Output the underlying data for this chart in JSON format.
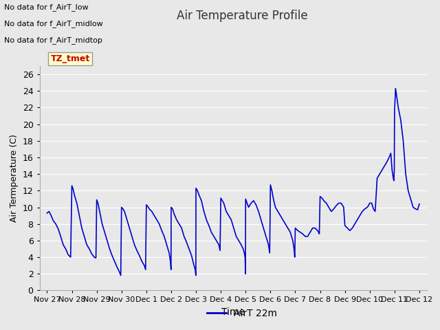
{
  "title": "Air Temperature Profile",
  "xlabel": "Time",
  "ylabel": "Air Termperature (C)",
  "background_color": "#e8e8e8",
  "line_color": "#0000cc",
  "line_width": 1.2,
  "ylim": [
    0,
    27
  ],
  "yticks": [
    0,
    2,
    4,
    6,
    8,
    10,
    12,
    14,
    16,
    18,
    20,
    22,
    24,
    26
  ],
  "legend_label": "AirT 22m",
  "no_data_texts": [
    "No data for f_AirT_low",
    "No data for f_AirT_midlow",
    "No data for f_AirT_midtop"
  ],
  "tz_tmet_label": "TZ_tmet",
  "x_tick_labels": [
    "Nov 27",
    "Nov 28",
    "Nov 29",
    "Nov 30",
    "Dec 1",
    "Dec 2",
    "Dec 3",
    "Dec 4",
    "Dec 5",
    "Dec 6",
    "Dec 7",
    "Dec 8",
    "Dec 9",
    "Dec 10",
    "Dec 11",
    "Dec 12"
  ],
  "waypoints_x": [
    0.0,
    0.08,
    0.15,
    0.25,
    0.35,
    0.45,
    0.55,
    0.65,
    0.75,
    0.85,
    0.95,
    1.0,
    1.05,
    1.1,
    1.2,
    1.3,
    1.4,
    1.5,
    1.6,
    1.7,
    1.8,
    1.9,
    1.97,
    2.0,
    2.05,
    2.12,
    2.22,
    2.32,
    2.42,
    2.52,
    2.62,
    2.72,
    2.82,
    2.92,
    2.97,
    3.0,
    3.06,
    3.12,
    3.22,
    3.32,
    3.42,
    3.52,
    3.62,
    3.72,
    3.82,
    3.92,
    3.97,
    4.0,
    4.06,
    4.12,
    4.22,
    4.32,
    4.42,
    4.52,
    4.62,
    4.72,
    4.82,
    4.92,
    4.97,
    4.995,
    5.0,
    5.06,
    5.12,
    5.22,
    5.32,
    5.42,
    5.52,
    5.62,
    5.72,
    5.82,
    5.92,
    5.97,
    5.995,
    6.0,
    6.06,
    6.12,
    6.22,
    6.32,
    6.42,
    6.52,
    6.62,
    6.72,
    6.82,
    6.92,
    6.97,
    7.0,
    7.06,
    7.12,
    7.22,
    7.32,
    7.42,
    7.52,
    7.62,
    7.72,
    7.82,
    7.9,
    7.95,
    7.98,
    7.995,
    8.0,
    8.06,
    8.12,
    8.22,
    8.32,
    8.42,
    8.52,
    8.62,
    8.72,
    8.82,
    8.92,
    8.97,
    9.0,
    9.06,
    9.12,
    9.2,
    9.3,
    9.4,
    9.5,
    9.6,
    9.7,
    9.8,
    9.9,
    9.95,
    9.98,
    10.0,
    10.1,
    10.2,
    10.3,
    10.4,
    10.5,
    10.6,
    10.7,
    10.8,
    10.9,
    10.97,
    11.0,
    11.08,
    11.15,
    11.25,
    11.35,
    11.45,
    11.55,
    11.65,
    11.75,
    11.85,
    11.95,
    12.0,
    12.1,
    12.2,
    12.3,
    12.4,
    12.5,
    12.6,
    12.7,
    12.8,
    12.9,
    12.95,
    13.0,
    13.08,
    13.15,
    13.22,
    13.3,
    13.4,
    13.5,
    13.6,
    13.7,
    13.78,
    13.85,
    13.9,
    13.95,
    13.975,
    13.99,
    14.0,
    14.04,
    14.08,
    14.15,
    14.25,
    14.35,
    14.45,
    14.55,
    14.65,
    14.75,
    14.85,
    14.93,
    15.0
  ],
  "waypoints_y": [
    9.3,
    9.5,
    9.1,
    8.4,
    8.0,
    7.4,
    6.5,
    5.5,
    5.0,
    4.3,
    4.0,
    12.6,
    12.2,
    11.5,
    10.5,
    9.0,
    7.5,
    6.5,
    5.5,
    5.0,
    4.4,
    4.0,
    3.9,
    10.9,
    10.5,
    9.5,
    8.0,
    7.0,
    6.0,
    5.0,
    4.2,
    3.5,
    2.8,
    2.2,
    1.8,
    10.0,
    9.8,
    9.5,
    8.5,
    7.5,
    6.5,
    5.5,
    4.8,
    4.2,
    3.5,
    3.0,
    2.5,
    10.3,
    10.1,
    9.8,
    9.5,
    9.0,
    8.5,
    8.0,
    7.2,
    6.5,
    5.5,
    4.5,
    3.5,
    2.5,
    10.0,
    9.8,
    9.2,
    8.5,
    8.0,
    7.5,
    6.5,
    5.8,
    5.0,
    4.2,
    3.0,
    2.5,
    1.8,
    12.3,
    12.0,
    11.5,
    10.8,
    9.5,
    8.5,
    7.8,
    7.0,
    6.5,
    6.0,
    5.5,
    4.8,
    11.1,
    10.8,
    10.5,
    9.5,
    9.0,
    8.5,
    7.5,
    6.5,
    6.0,
    5.5,
    5.0,
    4.5,
    3.9,
    2.0,
    11.0,
    10.5,
    10.0,
    10.5,
    10.8,
    10.3,
    9.5,
    8.5,
    7.5,
    6.5,
    5.5,
    4.5,
    12.7,
    12.0,
    11.0,
    10.0,
    9.5,
    9.0,
    8.5,
    8.0,
    7.5,
    7.0,
    6.0,
    5.0,
    4.0,
    7.5,
    7.2,
    7.0,
    6.8,
    6.5,
    6.5,
    7.0,
    7.5,
    7.5,
    7.2,
    6.8,
    11.3,
    11.1,
    10.8,
    10.5,
    10.0,
    9.5,
    9.8,
    10.2,
    10.5,
    10.5,
    10.0,
    7.8,
    7.5,
    7.2,
    7.5,
    8.0,
    8.5,
    9.0,
    9.5,
    9.8,
    10.0,
    10.2,
    10.5,
    10.5,
    9.8,
    9.5,
    13.5,
    14.0,
    14.5,
    15.0,
    15.5,
    16.0,
    16.5,
    14.5,
    13.5,
    13.2,
    14.5,
    21.5,
    24.3,
    23.5,
    22.0,
    20.5,
    18.0,
    14.0,
    12.0,
    11.0,
    10.0,
    9.8,
    9.7,
    10.4
  ]
}
